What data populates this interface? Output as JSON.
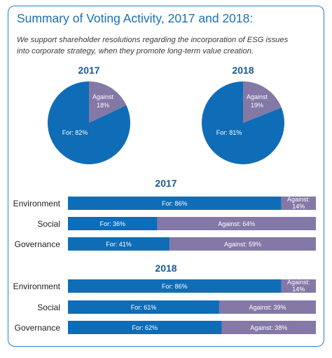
{
  "header": {
    "title": "Summary of Voting Activity, 2017 and 2018:",
    "subtitle_line1": "We support shareholder resolutions regarding the incorporation of ESG issues",
    "subtitle_line2": "into corporate strategy, when they promote long-term value creation."
  },
  "colors": {
    "for": "#0f6db7",
    "against": "#8378a6",
    "border": "#2a7fc1",
    "title": "#1a6fb5",
    "year": "#1a5a92"
  },
  "chart_data": [
    {
      "type": "pie",
      "title": "2017",
      "slices": [
        {
          "label": "For: 82%",
          "value": 82
        },
        {
          "label": "Against 18%",
          "value": 18
        }
      ]
    },
    {
      "type": "pie",
      "title": "2018",
      "slices": [
        {
          "label": "For: 81%",
          "value": 81
        },
        {
          "label": "Against 19%",
          "value": 19
        }
      ]
    },
    {
      "type": "bar",
      "orientation": "horizontal-stacked",
      "title": "2017",
      "categories": [
        "Environment",
        "Social",
        "Governance"
      ],
      "series": [
        {
          "name": "For",
          "values": [
            86,
            36,
            41
          ],
          "labels": [
            "For: 86%",
            "For: 36%",
            "For: 41%"
          ]
        },
        {
          "name": "Against",
          "values": [
            14,
            64,
            59
          ],
          "labels": [
            "Against: 14%",
            "Against: 64%",
            "Against: 59%"
          ]
        }
      ]
    },
    {
      "type": "bar",
      "orientation": "horizontal-stacked",
      "title": "2018",
      "categories": [
        "Environment",
        "Social",
        "Governance"
      ],
      "series": [
        {
          "name": "For",
          "values": [
            86,
            61,
            62
          ],
          "labels": [
            "For: 86%",
            "For: 61%",
            "For: 62%"
          ]
        },
        {
          "name": "Against",
          "values": [
            14,
            39,
            38
          ],
          "labels": [
            "Against: 14%",
            "Against: 39%",
            "Against: 38%"
          ]
        }
      ]
    }
  ]
}
